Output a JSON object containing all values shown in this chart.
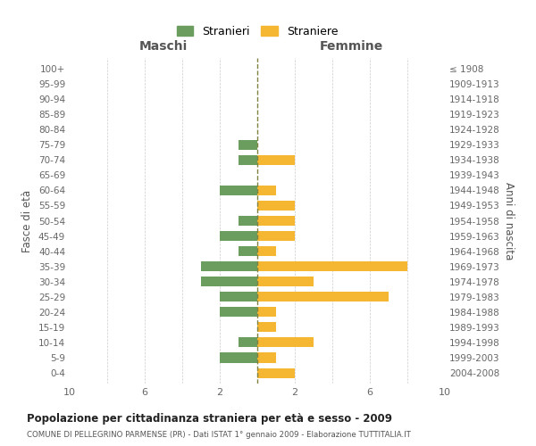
{
  "age_groups": [
    "0-4",
    "5-9",
    "10-14",
    "15-19",
    "20-24",
    "25-29",
    "30-34",
    "35-39",
    "40-44",
    "45-49",
    "50-54",
    "55-59",
    "60-64",
    "65-69",
    "70-74",
    "75-79",
    "80-84",
    "85-89",
    "90-94",
    "95-99",
    "100+"
  ],
  "birth_years": [
    "2004-2008",
    "1999-2003",
    "1994-1998",
    "1989-1993",
    "1984-1988",
    "1979-1983",
    "1974-1978",
    "1969-1973",
    "1964-1968",
    "1959-1963",
    "1954-1958",
    "1949-1953",
    "1944-1948",
    "1939-1943",
    "1934-1938",
    "1929-1933",
    "1924-1928",
    "1919-1923",
    "1914-1918",
    "1909-1913",
    "≤ 1908"
  ],
  "maschi": [
    0,
    2,
    1,
    0,
    2,
    2,
    3,
    3,
    1,
    2,
    1,
    0,
    2,
    0,
    1,
    1,
    0,
    0,
    0,
    0,
    0
  ],
  "femmine": [
    2,
    1,
    3,
    1,
    1,
    7,
    3,
    8,
    1,
    2,
    2,
    2,
    1,
    0,
    2,
    0,
    0,
    0,
    0,
    0,
    0
  ],
  "color_maschi": "#6b9e5e",
  "color_femmine": "#f5b731",
  "color_dashed": "#808040",
  "title": "Popolazione per cittadinanza straniera per età e sesso - 2009",
  "subtitle": "COMUNE DI PELLEGRINO PARMENSE (PR) - Dati ISTAT 1° gennaio 2009 - Elaborazione TUTTITALIA.IT",
  "xlabel_left": "Maschi",
  "xlabel_right": "Femmine",
  "ylabel_left": "Fasce di età",
  "ylabel_right": "Anni di nascita",
  "legend_maschi": "Stranieri",
  "legend_femmine": "Straniere",
  "xlim": 10,
  "background_color": "#ffffff",
  "grid_color": "#cccccc"
}
